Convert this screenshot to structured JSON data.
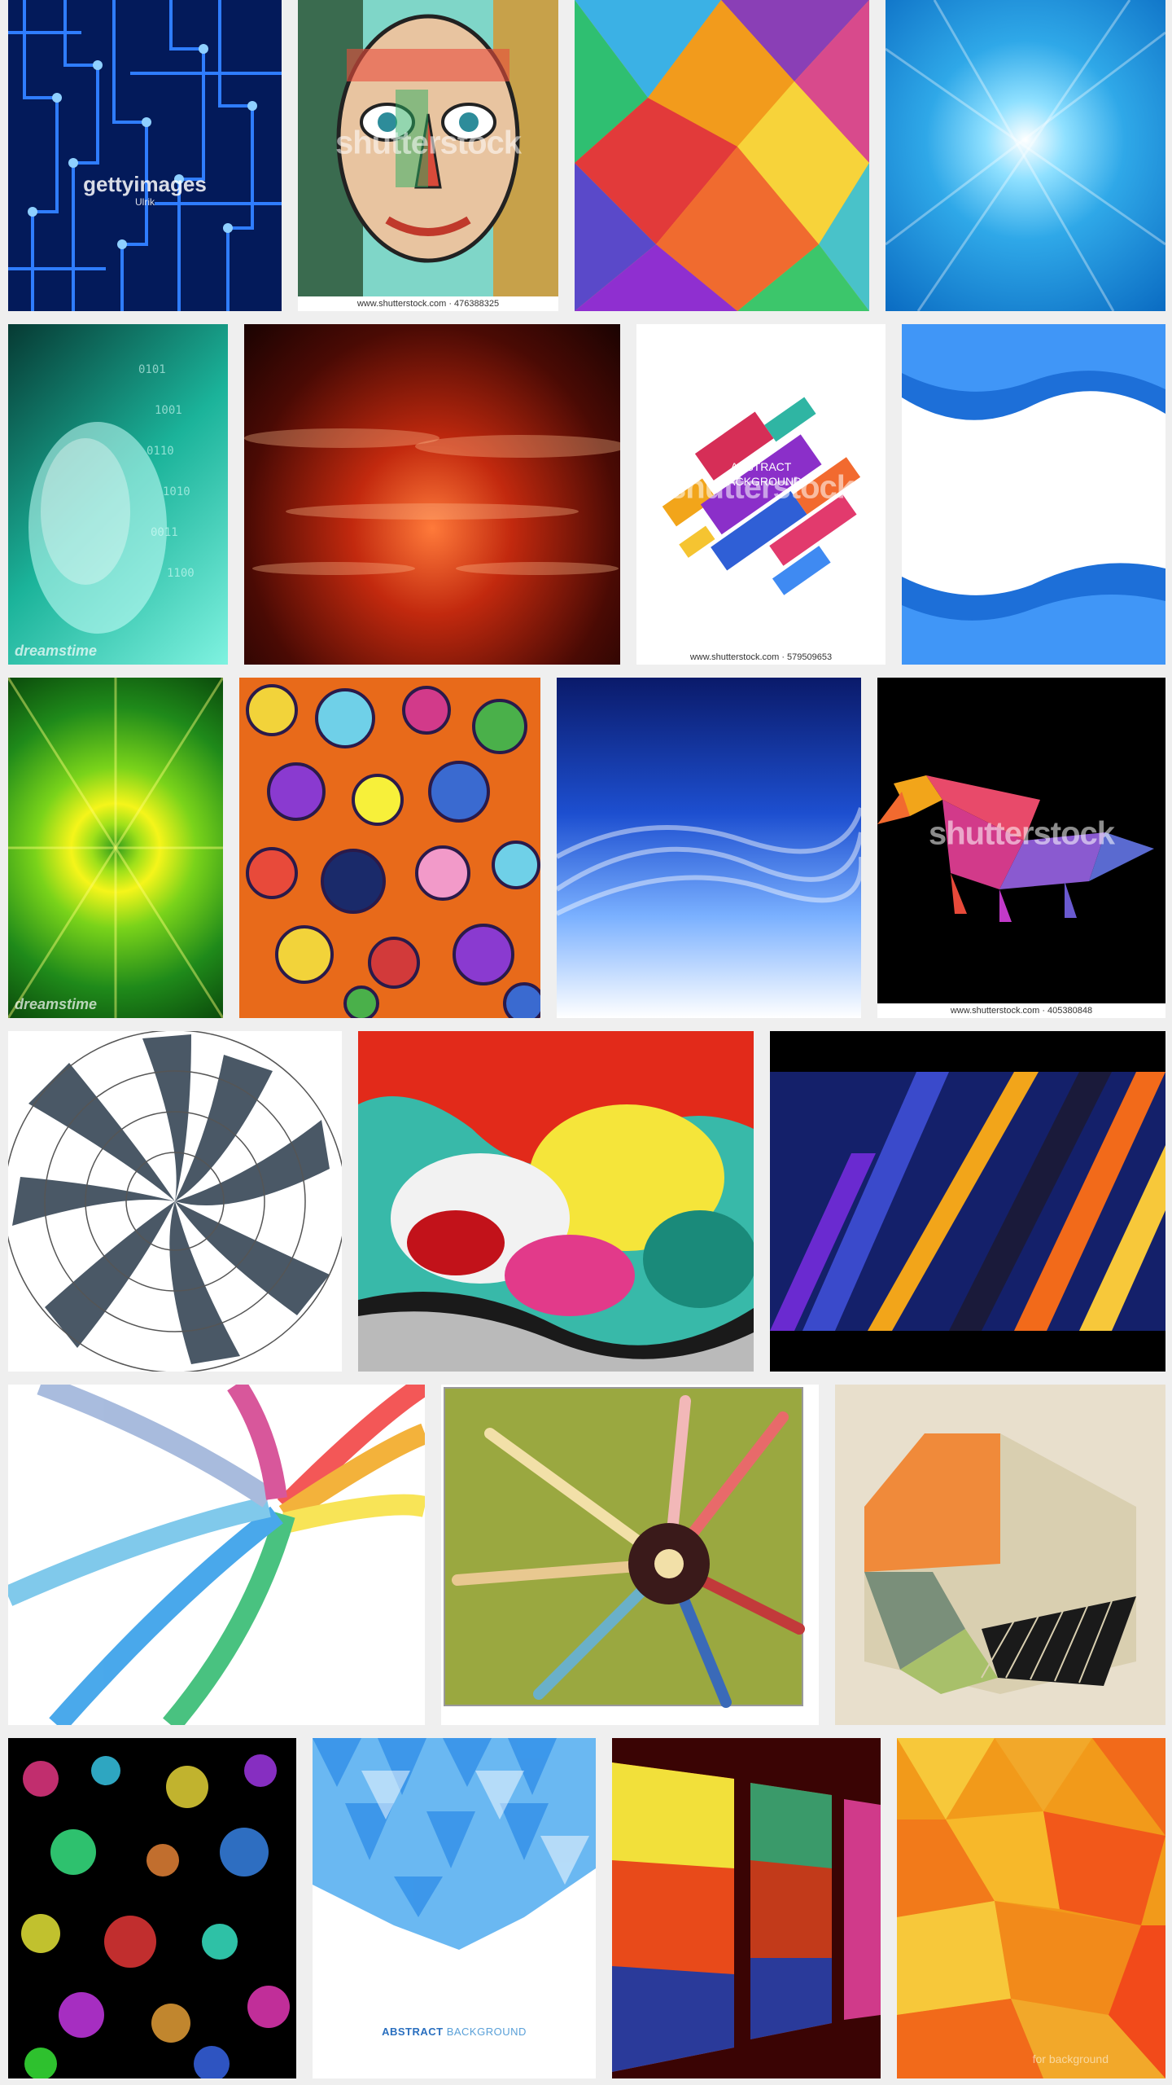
{
  "gallery": {
    "row1": {
      "t1": {
        "watermark": "gettyimages",
        "watermark_sub": "Ulrik"
      },
      "t2": {
        "watermark": "shutterstock",
        "caption": "www.shutterstock.com · 476388325"
      },
      "t3": {},
      "t4": {}
    },
    "row2": {
      "t1": {
        "watermark": "dreamstime"
      },
      "t2": {},
      "t3": {
        "title_line1": "ABSTRACT",
        "title_line2": "BACKGROUND",
        "watermark": "shutterstock",
        "caption": "www.shutterstock.com · 579509653"
      },
      "t4": {}
    },
    "row3": {
      "t1": {
        "watermark": "dreamstime"
      },
      "t2": {},
      "t3": {},
      "t4": {
        "watermark": "shutterstock",
        "caption": "www.shutterstock.com · 405380848"
      }
    },
    "row4": {
      "t1": {},
      "t2": {},
      "t3": {}
    },
    "row5": {
      "t1": {},
      "t2": {},
      "t3": {}
    },
    "row6": {
      "t1": {},
      "t2": {
        "bottom_bold": "ABSTRACT",
        "bottom_rest": " BACKGROUND"
      },
      "t3": {},
      "t4": {
        "caption": "for background"
      }
    }
  }
}
